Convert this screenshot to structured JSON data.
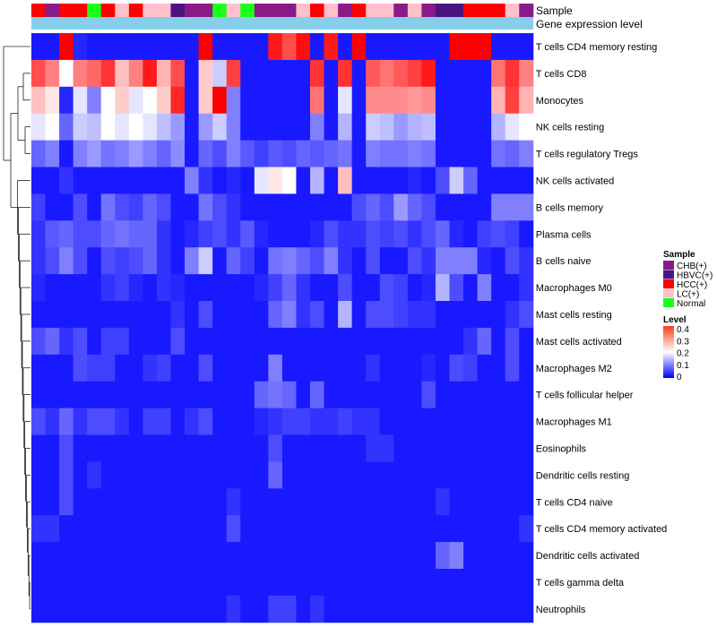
{
  "chart_data": {
    "type": "heatmap",
    "title": "",
    "annotation_rows": [
      "Sample",
      "Gene expression level"
    ],
    "sample_legend": {
      "title": "Sample",
      "entries": [
        {
          "label": "CHB(+)",
          "color": "#8b1a89"
        },
        {
          "label": "HBVC(+)",
          "color": "#4b1480"
        },
        {
          "label": "HCC(+)",
          "color": "#ff0000"
        },
        {
          "label": "LC(+)",
          "color": "#ffc0cb"
        },
        {
          "label": "Normal",
          "color": "#1aff1a"
        }
      ]
    },
    "level_legend": {
      "title": "Level",
      "ticks": [
        "0.4",
        "0.3",
        "0.2",
        "0.1",
        "0"
      ],
      "range": [
        0,
        0.4
      ],
      "colors": [
        "#0000ff",
        "#ffffff",
        "#ff0000"
      ]
    },
    "sample_groups": [
      "HCC(+)",
      "CHB(+)",
      "HCC(+)",
      "HCC(+)",
      "Normal",
      "HCC(+)",
      "LC(+)",
      "HCC(+)",
      "LC(+)",
      "LC(+)",
      "HBVC(+)",
      "CHB(+)",
      "CHB(+)",
      "Normal",
      "LC(+)",
      "Normal",
      "CHB(+)",
      "CHB(+)",
      "CHB(+)",
      "LC(+)",
      "HCC(+)",
      "LC(+)",
      "CHB(+)",
      "HCC(+)",
      "LC(+)",
      "LC(+)",
      "CHB(+)",
      "LC(+)",
      "CHB(+)",
      "HBVC(+)",
      "HBVC(+)",
      "HCC(+)",
      "HCC(+)",
      "HCC(+)",
      "LC(+)",
      "CHB(+)"
    ],
    "rows": [
      "T cells CD4 memory resting",
      "T cells CD8",
      "Monocytes",
      "NK cells resting",
      "T cells regulatory  Tregs",
      "NK cells activated",
      "B cells memory",
      "Plasma cells",
      "B cells naive",
      "Macrophages M0",
      "Mast cells resting",
      "Mast cells activated",
      "Macrophages M2",
      "T cells follicular helper",
      "Macrophages M1",
      "Eosinophils",
      "Dendritic cells resting",
      "T cells CD4 naive",
      "T cells CD4 memory activated",
      "Dendritic cells activated",
      "T cells gamma delta",
      "Neutrophils"
    ],
    "values": [
      [
        0.02,
        0.02,
        0.4,
        0.03,
        0.02,
        0.02,
        0.02,
        0.02,
        0.02,
        0.02,
        0.02,
        0.02,
        0.4,
        0.02,
        0.02,
        0.02,
        0.02,
        0.38,
        0.34,
        0.39,
        0.02,
        0.38,
        0.02,
        0.4,
        0.02,
        0.02,
        0.02,
        0.02,
        0.02,
        0.02,
        0.4,
        0.4,
        0.4,
        0.02,
        0.02,
        0.02
      ],
      [
        0.34,
        0.3,
        0.2,
        0.3,
        0.32,
        0.36,
        0.25,
        0.3,
        0.38,
        0.26,
        0.34,
        0.02,
        0.24,
        0.16,
        0.35,
        0.02,
        0.02,
        0.02,
        0.02,
        0.02,
        0.36,
        0.02,
        0.36,
        0.02,
        0.33,
        0.31,
        0.33,
        0.35,
        0.38,
        0.02,
        0.02,
        0.02,
        0.02,
        0.31,
        0.36,
        0.3
      ],
      [
        0.25,
        0.22,
        0.03,
        0.18,
        0.1,
        0.2,
        0.24,
        0.18,
        0.2,
        0.24,
        0.37,
        0.02,
        0.24,
        0.4,
        0.1,
        0.02,
        0.02,
        0.02,
        0.02,
        0.02,
        0.31,
        0.02,
        0.18,
        0.02,
        0.29,
        0.29,
        0.29,
        0.28,
        0.29,
        0.02,
        0.02,
        0.02,
        0.02,
        0.26,
        0.35,
        0.26
      ],
      [
        0.18,
        0.2,
        0.08,
        0.16,
        0.15,
        0.2,
        0.18,
        0.2,
        0.18,
        0.15,
        0.12,
        0.02,
        0.12,
        0.16,
        0.1,
        0.02,
        0.02,
        0.02,
        0.02,
        0.02,
        0.1,
        0.02,
        0.14,
        0.02,
        0.16,
        0.15,
        0.12,
        0.14,
        0.15,
        0.02,
        0.02,
        0.02,
        0.02,
        0.14,
        0.18,
        0.2
      ],
      [
        0.08,
        0.1,
        0.02,
        0.1,
        0.12,
        0.09,
        0.1,
        0.12,
        0.1,
        0.08,
        0.11,
        0.02,
        0.08,
        0.06,
        0.1,
        0.07,
        0.05,
        0.07,
        0.06,
        0.08,
        0.07,
        0.08,
        0.09,
        0.02,
        0.1,
        0.09,
        0.09,
        0.1,
        0.09,
        0.02,
        0.02,
        0.02,
        0.02,
        0.09,
        0.08,
        0.1
      ],
      [
        0.02,
        0.02,
        0.04,
        0.02,
        0.02,
        0.02,
        0.02,
        0.02,
        0.02,
        0.02,
        0.02,
        0.1,
        0.04,
        0.02,
        0.03,
        0.02,
        0.18,
        0.22,
        0.2,
        0.02,
        0.14,
        0.02,
        0.25,
        0.02,
        0.02,
        0.02,
        0.02,
        0.03,
        0.02,
        0.06,
        0.16,
        0.08,
        0.02,
        0.02,
        0.02,
        0.02
      ],
      [
        0.05,
        0.02,
        0.02,
        0.06,
        0.02,
        0.09,
        0.06,
        0.05,
        0.08,
        0.06,
        0.02,
        0.02,
        0.09,
        0.06,
        0.04,
        0.02,
        0.02,
        0.02,
        0.02,
        0.02,
        0.02,
        0.02,
        0.02,
        0.06,
        0.08,
        0.06,
        0.12,
        0.08,
        0.06,
        0.02,
        0.02,
        0.02,
        0.02,
        0.1,
        0.1,
        0.1
      ],
      [
        0.04,
        0.07,
        0.08,
        0.06,
        0.06,
        0.08,
        0.09,
        0.08,
        0.08,
        0.04,
        0.02,
        0.03,
        0.05,
        0.06,
        0.04,
        0.07,
        0.03,
        0.02,
        0.02,
        0.02,
        0.03,
        0.06,
        0.04,
        0.04,
        0.06,
        0.05,
        0.06,
        0.04,
        0.06,
        0.08,
        0.03,
        0.02,
        0.05,
        0.06,
        0.05,
        0.02
      ],
      [
        0.04,
        0.06,
        0.1,
        0.06,
        0.02,
        0.06,
        0.05,
        0.06,
        0.08,
        0.04,
        0.02,
        0.1,
        0.16,
        0.02,
        0.08,
        0.05,
        0.02,
        0.09,
        0.1,
        0.08,
        0.06,
        0.1,
        0.04,
        0.02,
        0.06,
        0.02,
        0.02,
        0.06,
        0.04,
        0.1,
        0.1,
        0.1,
        0.03,
        0.02,
        0.06,
        0.04
      ],
      [
        0.03,
        0.02,
        0.02,
        0.02,
        0.02,
        0.04,
        0.05,
        0.03,
        0.02,
        0.04,
        0.03,
        0.02,
        0.02,
        0.02,
        0.02,
        0.02,
        0.03,
        0.05,
        0.08,
        0.04,
        0.02,
        0.02,
        0.06,
        0.02,
        0.02,
        0.06,
        0.05,
        0.02,
        0.03,
        0.14,
        0.06,
        0.02,
        0.1,
        0.02,
        0.02,
        0.04
      ],
      [
        0.02,
        0.02,
        0.02,
        0.02,
        0.02,
        0.02,
        0.02,
        0.02,
        0.02,
        0.02,
        0.04,
        0.02,
        0.06,
        0.02,
        0.02,
        0.02,
        0.02,
        0.08,
        0.1,
        0.04,
        0.06,
        0.02,
        0.14,
        0.02,
        0.06,
        0.06,
        0.05,
        0.04,
        0.04,
        0.02,
        0.02,
        0.02,
        0.02,
        0.02,
        0.04,
        0.06
      ],
      [
        0.06,
        0.08,
        0.04,
        0.06,
        0.02,
        0.05,
        0.05,
        0.02,
        0.02,
        0.02,
        0.06,
        0.02,
        0.02,
        0.02,
        0.02,
        0.02,
        0.02,
        0.02,
        0.02,
        0.02,
        0.02,
        0.02,
        0.02,
        0.02,
        0.02,
        0.02,
        0.02,
        0.02,
        0.02,
        0.02,
        0.02,
        0.04,
        0.08,
        0.02,
        0.06,
        0.02
      ],
      [
        0.02,
        0.02,
        0.02,
        0.06,
        0.05,
        0.05,
        0.02,
        0.02,
        0.04,
        0.05,
        0.02,
        0.02,
        0.06,
        0.02,
        0.02,
        0.02,
        0.02,
        0.1,
        0.02,
        0.02,
        0.02,
        0.02,
        0.02,
        0.02,
        0.04,
        0.02,
        0.02,
        0.02,
        0.03,
        0.02,
        0.06,
        0.05,
        0.02,
        0.02,
        0.06,
        0.02
      ],
      [
        0.02,
        0.02,
        0.02,
        0.02,
        0.02,
        0.02,
        0.02,
        0.02,
        0.02,
        0.02,
        0.02,
        0.02,
        0.02,
        0.02,
        0.02,
        0.02,
        0.08,
        0.09,
        0.08,
        0.02,
        0.08,
        0.02,
        0.02,
        0.02,
        0.02,
        0.02,
        0.02,
        0.02,
        0.06,
        0.02,
        0.02,
        0.02,
        0.02,
        0.02,
        0.02,
        0.02
      ],
      [
        0.06,
        0.04,
        0.08,
        0.04,
        0.06,
        0.06,
        0.04,
        0.02,
        0.05,
        0.05,
        0.02,
        0.04,
        0.06,
        0.02,
        0.02,
        0.02,
        0.03,
        0.04,
        0.05,
        0.05,
        0.04,
        0.04,
        0.05,
        0.04,
        0.04,
        0.02,
        0.02,
        0.02,
        0.02,
        0.02,
        0.02,
        0.02,
        0.02,
        0.02,
        0.02,
        0.02
      ],
      [
        0.02,
        0.02,
        0.06,
        0.02,
        0.02,
        0.02,
        0.02,
        0.02,
        0.02,
        0.02,
        0.02,
        0.02,
        0.02,
        0.02,
        0.02,
        0.02,
        0.02,
        0.06,
        0.02,
        0.02,
        0.02,
        0.02,
        0.02,
        0.02,
        0.04,
        0.04,
        0.02,
        0.02,
        0.02,
        0.02,
        0.02,
        0.02,
        0.02,
        0.02,
        0.02,
        0.02
      ],
      [
        0.02,
        0.02,
        0.06,
        0.02,
        0.04,
        0.02,
        0.02,
        0.02,
        0.02,
        0.02,
        0.02,
        0.02,
        0.02,
        0.02,
        0.02,
        0.02,
        0.02,
        0.08,
        0.02,
        0.02,
        0.02,
        0.02,
        0.02,
        0.02,
        0.02,
        0.02,
        0.02,
        0.02,
        0.02,
        0.02,
        0.02,
        0.02,
        0.02,
        0.02,
        0.02,
        0.02
      ],
      [
        0.02,
        0.02,
        0.06,
        0.02,
        0.02,
        0.02,
        0.02,
        0.02,
        0.02,
        0.02,
        0.02,
        0.02,
        0.02,
        0.02,
        0.04,
        0.02,
        0.02,
        0.02,
        0.02,
        0.02,
        0.02,
        0.02,
        0.02,
        0.02,
        0.02,
        0.02,
        0.02,
        0.02,
        0.02,
        0.04,
        0.02,
        0.02,
        0.02,
        0.02,
        0.02,
        0.02
      ],
      [
        0.04,
        0.04,
        0.02,
        0.02,
        0.02,
        0.02,
        0.02,
        0.02,
        0.02,
        0.02,
        0.02,
        0.02,
        0.02,
        0.02,
        0.06,
        0.02,
        0.02,
        0.02,
        0.02,
        0.02,
        0.02,
        0.02,
        0.02,
        0.02,
        0.02,
        0.02,
        0.02,
        0.02,
        0.02,
        0.02,
        0.02,
        0.02,
        0.02,
        0.02,
        0.02,
        0.04
      ],
      [
        0.02,
        0.02,
        0.02,
        0.02,
        0.02,
        0.02,
        0.02,
        0.02,
        0.02,
        0.02,
        0.02,
        0.02,
        0.02,
        0.02,
        0.02,
        0.02,
        0.02,
        0.02,
        0.02,
        0.02,
        0.02,
        0.02,
        0.02,
        0.02,
        0.02,
        0.02,
        0.02,
        0.02,
        0.02,
        0.08,
        0.1,
        0.02,
        0.02,
        0.02,
        0.02,
        0.02
      ],
      [
        0.02,
        0.02,
        0.02,
        0.02,
        0.02,
        0.02,
        0.02,
        0.02,
        0.02,
        0.02,
        0.02,
        0.02,
        0.02,
        0.02,
        0.02,
        0.02,
        0.02,
        0.02,
        0.02,
        0.02,
        0.02,
        0.02,
        0.02,
        0.02,
        0.02,
        0.02,
        0.02,
        0.02,
        0.02,
        0.02,
        0.02,
        0.02,
        0.02,
        0.02,
        0.02,
        0.02
      ],
      [
        0.02,
        0.02,
        0.02,
        0.02,
        0.02,
        0.02,
        0.02,
        0.02,
        0.02,
        0.02,
        0.02,
        0.02,
        0.02,
        0.02,
        0.04,
        0.02,
        0.02,
        0.05,
        0.05,
        0.02,
        0.04,
        0.02,
        0.02,
        0.02,
        0.02,
        0.02,
        0.02,
        0.02,
        0.02,
        0.02,
        0.02,
        0.02,
        0.02,
        0.02,
        0.02,
        0.02
      ]
    ]
  }
}
